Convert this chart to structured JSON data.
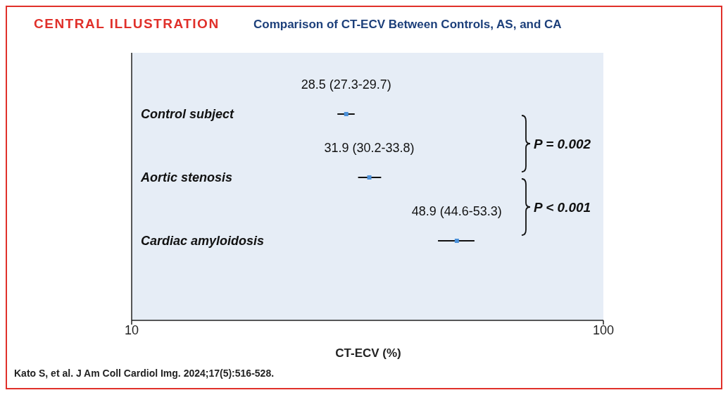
{
  "chart_data": {
    "type": "scatter",
    "orientation": "horizontal",
    "title": "CENTRAL ILLUSTRATION",
    "subtitle": "Comparison of CT-ECV Between Controls, AS, and CA",
    "categories": [
      "Control subject",
      "Aortic stenosis",
      "Cardiac amyloidosis"
    ],
    "values": [
      28.5,
      31.9,
      48.9
    ],
    "errors": [
      [
        27.3,
        29.7
      ],
      [
        30.2,
        33.8
      ],
      [
        44.6,
        53.3
      ]
    ],
    "value_labels": [
      "28.5 (27.3-29.7)",
      "31.9 (30.2-33.8)",
      "48.9 (44.6-53.3)"
    ],
    "color": "#4a90d9",
    "marker": "square",
    "log": "x",
    "grid": false,
    "xlim": [
      10,
      100
    ],
    "xticks": [
      10,
      100
    ],
    "xlabel": "CT-ECV (%)",
    "annotations": [
      "P = 0.002",
      "P < 0.001",
      "Kato S, et al. J Am Coll Cardiol Img. 2024;17(5):516-528."
    ]
  }
}
